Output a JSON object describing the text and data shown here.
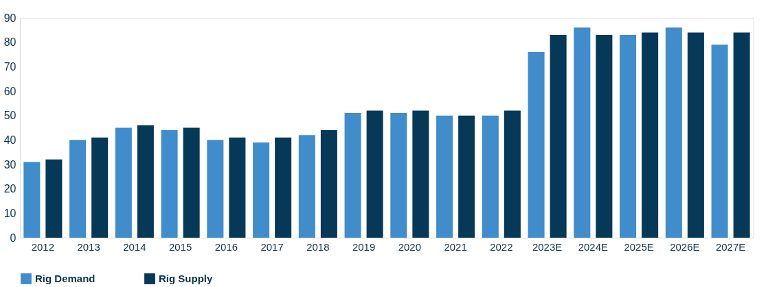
{
  "chart_data": {
    "type": "bar",
    "categories": [
      "2012",
      "2013",
      "2014",
      "2015",
      "2016",
      "2017",
      "2018",
      "2019",
      "2020",
      "2021",
      "2022",
      "2023E",
      "2024E",
      "2025E",
      "2026E",
      "2027E"
    ],
    "series": [
      {
        "name": "Rig Demand",
        "color": "#418ccb",
        "values": [
          31,
          40,
          45,
          44,
          40,
          39,
          42,
          51,
          51,
          50,
          50,
          76,
          86,
          83,
          86,
          79
        ]
      },
      {
        "name": "Rig Supply",
        "color": "#063858",
        "values": [
          32,
          41,
          46,
          45,
          41,
          41,
          44,
          52,
          52,
          50,
          52,
          83,
          83,
          84,
          84,
          84
        ]
      }
    ],
    "ylim": [
      0,
      90
    ],
    "yticks": [
      0,
      10,
      20,
      30,
      40,
      50,
      60,
      70,
      80,
      90
    ],
    "grid": false,
    "legend": "bottom"
  }
}
